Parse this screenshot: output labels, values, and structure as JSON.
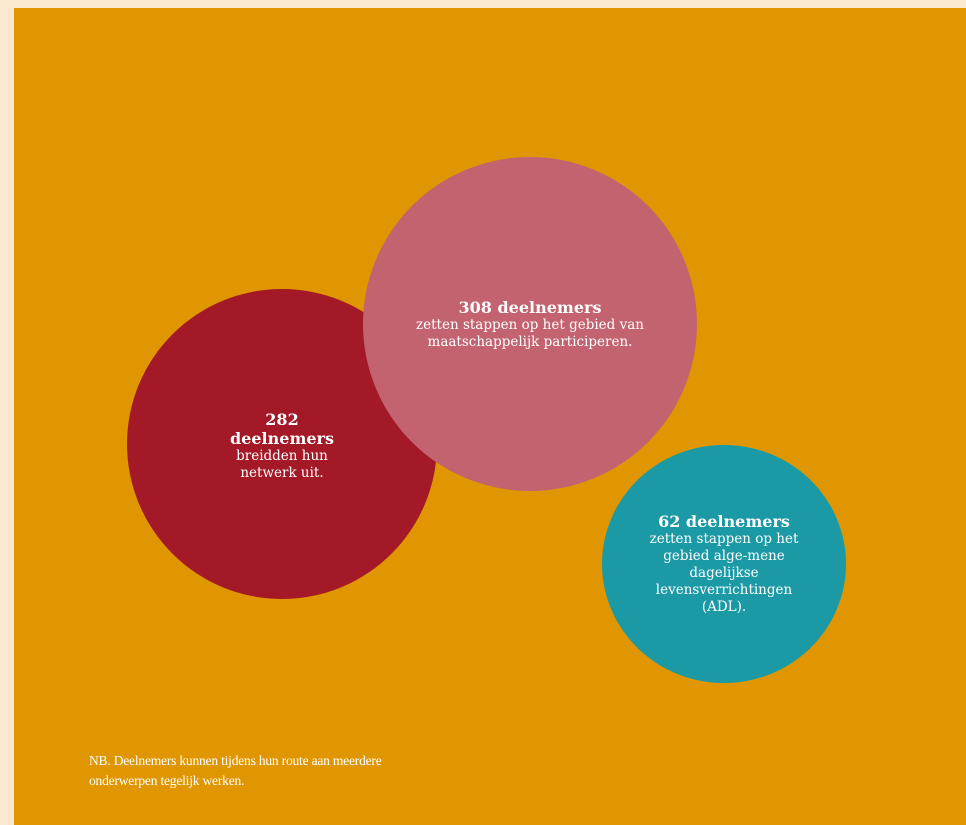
{
  "chart_data": {
    "type": "bubble",
    "bubbles": [
      {
        "id": "netwerk",
        "count_label": "282 deelnemers",
        "count_line1": "282",
        "count_line2": "deelnemers",
        "description": "breidden hun netwerk uit.",
        "value": 282,
        "color": "#a31927"
      },
      {
        "id": "maatschappelijk-participeren",
        "count_label": "308 deelnemers",
        "description": "zetten stappen op het gebied van maatschappelijk participeren.",
        "value": 308,
        "color": "#c3636f"
      },
      {
        "id": "adl",
        "count_label": "62 deelnemers",
        "description": "zetten stappen op het gebied alge-mene dagelijkse levensverrichtingen (ADL).",
        "value": 62,
        "color": "#1b9aa6"
      }
    ]
  },
  "colors": {
    "page_background": "#fbe9cf",
    "panel_background": "#e09600",
    "text": "#ffffff"
  },
  "note": {
    "line1": "NB. Deelnemers kunnen tijdens hun route aan meerdere",
    "line2": "onderwerpen tegelijk werken."
  }
}
